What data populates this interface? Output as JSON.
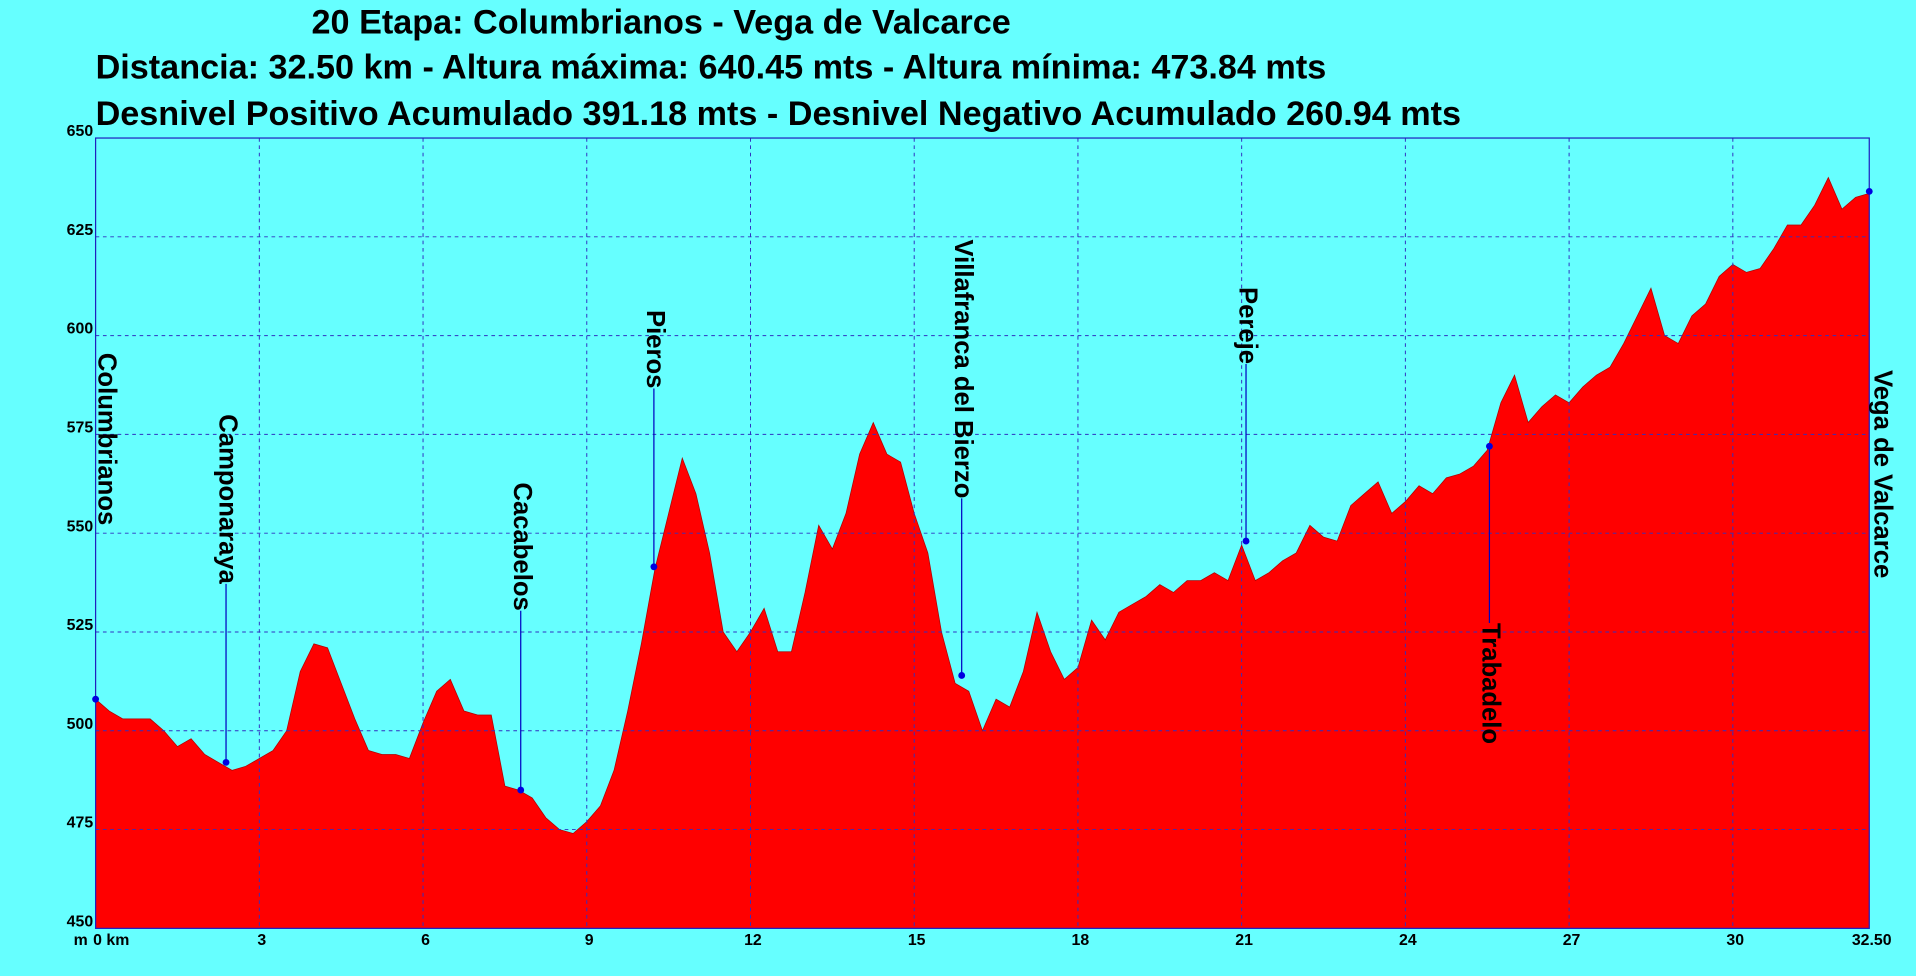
{
  "chart_data": {
    "type": "area",
    "title": "20 Etapa: Columbrianos - Vega de Valcarce",
    "subtitles": [
      "Distancia: 32.50 km - Altura máxima: 640.45 mts - Altura mínima: 473.84 mts",
      "Desnivel Positivo Acumulado 391.18 mts - Desnivel Negativo Acumulado 260.94 mts"
    ],
    "y_unit_label": "m",
    "color": "#ff0000",
    "grid": true,
    "xlim": [
      0,
      32.5
    ],
    "ylim": [
      450,
      650
    ],
    "xticks": [
      {
        "value": 0,
        "label": "0 km"
      },
      3,
      6,
      9,
      12,
      15,
      18,
      21,
      24,
      27,
      30,
      {
        "value": 32.5,
        "label": "32.50"
      }
    ],
    "yticks": [
      450,
      475,
      500,
      525,
      550,
      575,
      600,
      625,
      650
    ],
    "x": [
      0,
      0.25,
      0.5,
      0.75,
      1,
      1.25,
      1.5,
      1.75,
      2,
      2.25,
      2.5,
      2.75,
      3,
      3.25,
      3.5,
      3.75,
      4,
      4.25,
      4.5,
      4.75,
      5,
      5.25,
      5.5,
      5.75,
      6,
      6.25,
      6.5,
      6.75,
      7,
      7.25,
      7.5,
      7.75,
      8,
      8.25,
      8.5,
      8.75,
      9,
      9.25,
      9.5,
      9.75,
      10,
      10.25,
      10.5,
      10.75,
      11,
      11.25,
      11.5,
      11.75,
      12,
      12.25,
      12.5,
      12.75,
      13,
      13.25,
      13.5,
      13.75,
      14,
      14.25,
      14.5,
      14.75,
      15,
      15.25,
      15.5,
      15.75,
      16,
      16.25,
      16.5,
      16.75,
      17,
      17.25,
      17.5,
      17.75,
      18,
      18.25,
      18.5,
      18.75,
      19,
      19.25,
      19.5,
      19.75,
      20,
      20.25,
      20.5,
      20.75,
      21,
      21.25,
      21.5,
      21.75,
      22,
      22.25,
      22.5,
      22.75,
      23,
      23.25,
      23.5,
      23.75,
      24,
      24.25,
      24.5,
      24.75,
      25,
      25.25,
      25.5,
      25.75,
      26,
      26.25,
      26.5,
      26.75,
      27,
      27.25,
      27.5,
      27.75,
      28,
      28.25,
      28.5,
      28.75,
      29,
      29.25,
      29.5,
      29.75,
      30,
      30.25,
      30.5,
      30.75,
      31,
      31.25,
      31.5,
      31.75,
      32,
      32.25,
      32.5
    ],
    "values": [
      508,
      505,
      503,
      503,
      503,
      500,
      496,
      498,
      494,
      492,
      490,
      491,
      493,
      495,
      500,
      515,
      522,
      521,
      512,
      503,
      495,
      494,
      494,
      493,
      502,
      510,
      513,
      505,
      504,
      504,
      486,
      485,
      483,
      478,
      475,
      474,
      477,
      481,
      490,
      505,
      522,
      541,
      555,
      569,
      560,
      545,
      525,
      520,
      525,
      531,
      520,
      520,
      535,
      552,
      546,
      555,
      570,
      578,
      570,
      568,
      555,
      545,
      525,
      512,
      510,
      500,
      508,
      506,
      515,
      530,
      520,
      513,
      516,
      528,
      523,
      530,
      532,
      534,
      537,
      535,
      538,
      538,
      540,
      538,
      547,
      538,
      540,
      543,
      545,
      552,
      549,
      548,
      557,
      560,
      563,
      555,
      558,
      562,
      560,
      564,
      565,
      567,
      571,
      583,
      590,
      578,
      582,
      585,
      583,
      587,
      590,
      592,
      598,
      605,
      612,
      600,
      598,
      605,
      608,
      615,
      618,
      616,
      617,
      622,
      628,
      628,
      633,
      640,
      632,
      635,
      636
    ],
    "waypoints": [
      {
        "label": "Columbrianos",
        "x": 0,
        "value": 508
      },
      {
        "label": "Camponaraya",
        "x": 2.39,
        "value": 492
      },
      {
        "label": "Cacabelos",
        "x": 7.79,
        "value": 485
      },
      {
        "label": "Pieros",
        "x": 10.23,
        "value": 541.5
      },
      {
        "label": "Villafranca del Bierzo",
        "x": 15.87,
        "value": 514
      },
      {
        "label": "Pereje",
        "x": 21.08,
        "value": 548
      },
      {
        "label": "Trabadelo",
        "x": 25.54,
        "value": 572
      },
      {
        "label": "Vega de Valcarce",
        "x": 32.5,
        "value": 636.5
      }
    ]
  }
}
